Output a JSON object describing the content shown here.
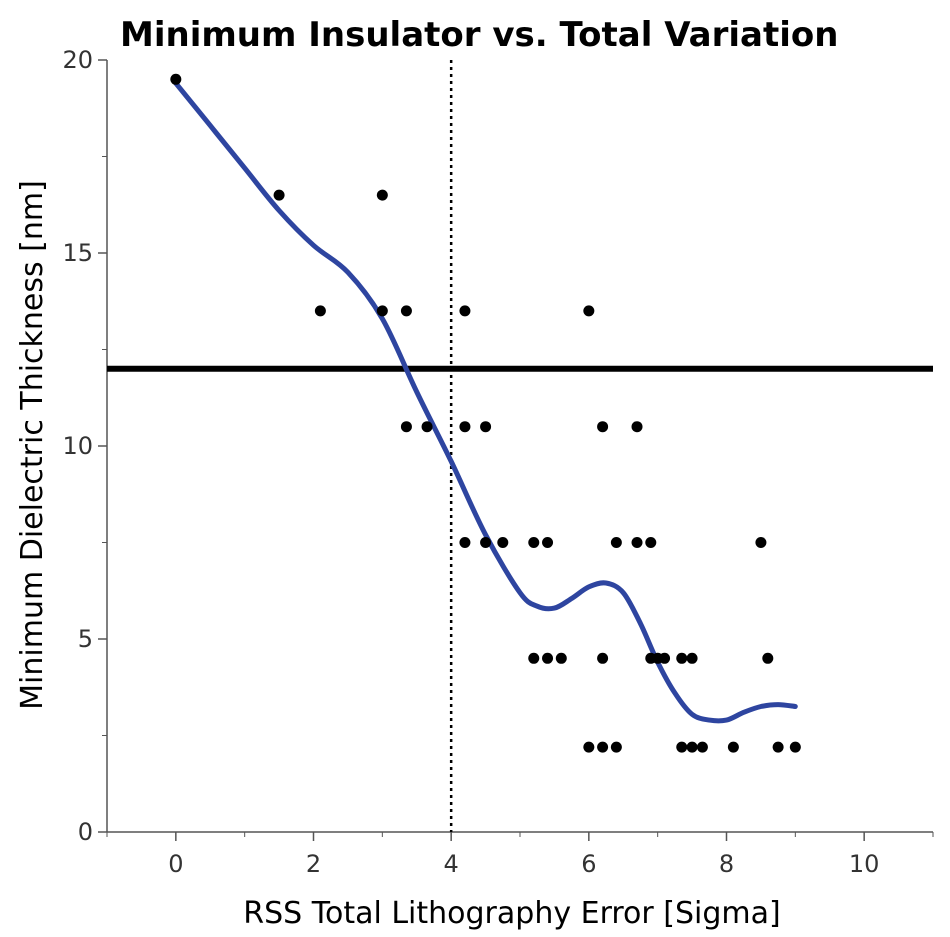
{
  "chart_data": {
    "type": "scatter",
    "title": "Minimum Insulator vs. Total Variation",
    "xlabel": "RSS Total Lithography Error [Sigma]",
    "ylabel": "Minimum Dielectric Thickness [nm]",
    "xlim": [
      -1,
      11
    ],
    "ylim": [
      0,
      20
    ],
    "xticks": [
      "0",
      "2",
      "4",
      "6",
      "8",
      "10"
    ],
    "yticks": [
      "0",
      "5",
      "10",
      "15",
      "20"
    ],
    "grid": false,
    "reference_lines": {
      "horizontal_y": 12,
      "vertical_x": 4
    },
    "points": [
      [
        0,
        19.5
      ],
      [
        1.5,
        16.5
      ],
      [
        3.0,
        16.5
      ],
      [
        2.1,
        13.5
      ],
      [
        3.0,
        13.5
      ],
      [
        3.35,
        13.5
      ],
      [
        4.2,
        13.5
      ],
      [
        6.0,
        13.5
      ],
      [
        3.35,
        10.5
      ],
      [
        3.65,
        10.5
      ],
      [
        4.2,
        10.5
      ],
      [
        4.5,
        10.5
      ],
      [
        6.2,
        10.5
      ],
      [
        6.7,
        10.5
      ],
      [
        4.2,
        7.5
      ],
      [
        4.5,
        7.5
      ],
      [
        4.75,
        7.5
      ],
      [
        5.2,
        7.5
      ],
      [
        5.4,
        7.5
      ],
      [
        6.4,
        7.5
      ],
      [
        6.7,
        7.5
      ],
      [
        6.9,
        7.5
      ],
      [
        8.5,
        7.5
      ],
      [
        5.2,
        4.5
      ],
      [
        5.4,
        4.5
      ],
      [
        5.6,
        4.5
      ],
      [
        6.2,
        4.5
      ],
      [
        6.9,
        4.5
      ],
      [
        7.0,
        4.5
      ],
      [
        7.1,
        4.5
      ],
      [
        7.35,
        4.5
      ],
      [
        7.5,
        4.5
      ],
      [
        8.6,
        4.5
      ],
      [
        6.0,
        2.2
      ],
      [
        6.2,
        2.2
      ],
      [
        6.4,
        2.2
      ],
      [
        7.35,
        2.2
      ],
      [
        7.5,
        2.2
      ],
      [
        7.65,
        2.2
      ],
      [
        8.1,
        2.2
      ],
      [
        8.75,
        2.2
      ],
      [
        9.0,
        2.2
      ]
    ],
    "smoother": {
      "x": [
        0,
        0.5,
        1.0,
        1.5,
        2.0,
        2.5,
        3.0,
        3.5,
        4.0,
        4.5,
        5.0,
        5.25,
        5.5,
        5.75,
        6.0,
        6.25,
        6.5,
        6.75,
        7.0,
        7.25,
        7.5,
        7.75,
        8.0,
        8.25,
        8.5,
        8.75,
        9.0
      ],
      "y": [
        19.4,
        18.3,
        17.2,
        16.1,
        15.2,
        14.5,
        13.3,
        11.4,
        9.6,
        7.7,
        6.2,
        5.85,
        5.8,
        6.05,
        6.35,
        6.45,
        6.2,
        5.4,
        4.4,
        3.6,
        3.05,
        2.9,
        2.9,
        3.1,
        3.25,
        3.3,
        3.25
      ]
    },
    "colors": {
      "points": "#000000",
      "smoother": "#2e45a0",
      "reference": "#000000"
    }
  }
}
